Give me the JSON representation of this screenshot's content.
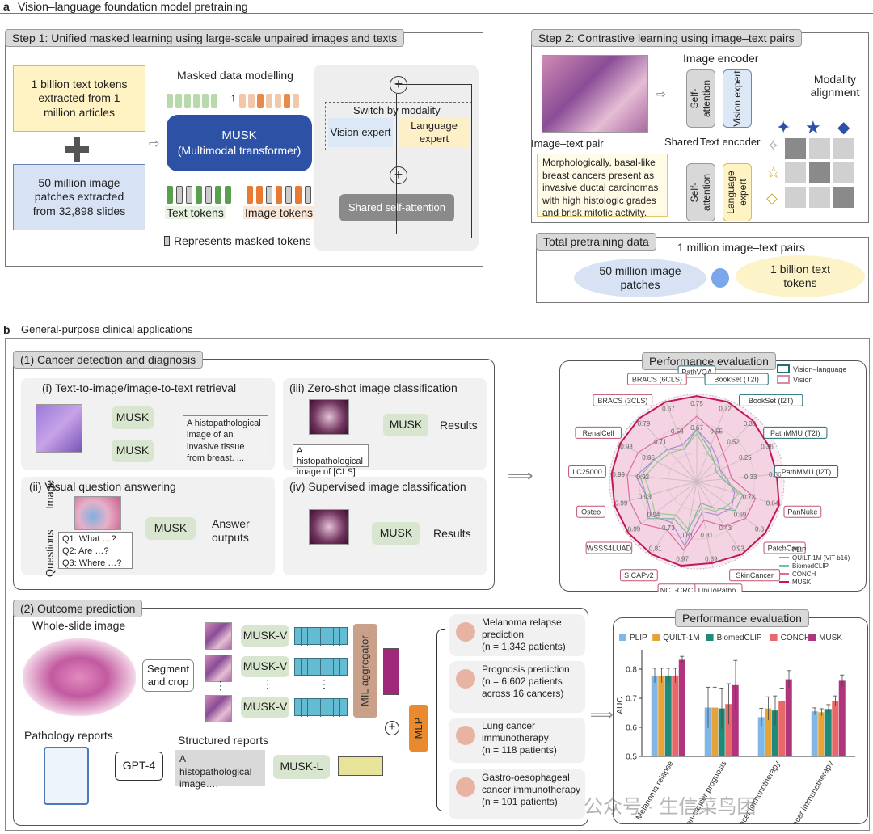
{
  "section_a": {
    "letter": "a",
    "title": "Vision–language foundation model pretraining",
    "step1": {
      "title": "Step 1: Unified masked learning using large-scale unpaired images and texts",
      "text_source": "1 billion text tokens extracted from 1 million articles",
      "image_source": "50 million image patches extracted from 32,898 slides",
      "masked_modelling": "Masked data modelling",
      "musk_name": "MUSK",
      "musk_desc": "(Multimodal transformer)",
      "text_tokens": "Text tokens",
      "image_tokens": "Image tokens",
      "masked_legend": "Represents masked tokens",
      "switch": "Switch by modality",
      "vision_expert": "Vision expert",
      "language_expert": "Language expert",
      "shared_attention": "Shared self-attention"
    },
    "step2": {
      "title": "Step 2: Contrastive learning using image–text pairs",
      "image_encoder": "Image encoder",
      "self_attention": "Self-attention",
      "vision_expert": "Vision expert",
      "language_expert": "Language expert",
      "modality_alignment": "Modality alignment",
      "pair_label": "Image–text pair",
      "shared": "Shared",
      "text_encoder": "Text encoder",
      "caption": "Morphologically, basal-like breast cancers present as invasive ductal carcinomas with high histologic grades and brisk mitotic activity."
    },
    "total": {
      "title": "Total pretraining data",
      "pairs": "1 million image–text pairs",
      "images": "50 million image patches",
      "tokens": "1 billion text tokens"
    }
  },
  "section_b": {
    "letter": "b",
    "title": "General-purpose clinical applications",
    "detection": {
      "title": "(1) Cancer detection and diagnosis",
      "retrieval_title": "(i) Text-to-image/image-to-text retrieval",
      "retrieval_text": "A histopathological image of an invasive tissue from breast. ...",
      "zeroshot_title": "(iii) Zero-shot image classification",
      "zeroshot_text": "A histopathological image of [CLS]",
      "vqa_title": "(ii) Visual question answering",
      "vqa_image": "Image",
      "vqa_questions": "Questions",
      "q1": "Q1: What …?",
      "q2": "Q2: Are …?",
      "q3": "Q3: Where …?",
      "answer": "Answer outputs",
      "supervised_title": "(iv) Supervised image classification",
      "musk": "MUSK",
      "results": "Results"
    },
    "radar": {
      "title": "Performance evaluation",
      "legend_type": [
        "Vision–language",
        "Vision"
      ],
      "legend_type_colors": [
        "#1f6f73",
        "#d98aa6"
      ],
      "models": [
        "PLIP",
        "QUILT-1M (ViT-b16)",
        "BiomedCLIP",
        "CONCH",
        "MUSK"
      ],
      "model_colors": [
        "#8fd98a",
        "#a78ee0",
        "#6cc3a5",
        "#e0679b",
        "#c2185b"
      ],
      "tasks": [
        "PathVQA",
        "BookSet (T2I)",
        "BookSet (I2T)",
        "PathMMU (T2I)",
        "PathMMU (I2T)",
        "PanNuke",
        "PatchCam",
        "SkinCancer",
        "UniToPatho",
        "NCT-CRC",
        "SICAPv2",
        "WSSS4LUAD",
        "Osteo",
        "LC25000",
        "RenalCell",
        "BRACS (3CLS)",
        "BRACS (6CLS)"
      ],
      "vl_tasks": [
        0,
        1,
        2,
        3,
        4
      ],
      "outer_values": [
        "0.75",
        "0.72",
        "0.38",
        "0.36",
        "0.36",
        "0.84",
        "0.8",
        "0.93",
        "0.39",
        "0.97",
        "0.81",
        "0.99",
        "0.99",
        "0.99",
        "0.93",
        "0.79",
        "0.67"
      ],
      "inner_values": [
        "0.67",
        "0.55",
        "0.52",
        "0.25",
        "0.33",
        "0.72",
        "0.69",
        "0.43",
        "0.31",
        "0.81",
        "0.73",
        "0.94",
        "0.93",
        "0.92",
        "0.86",
        "0.71",
        "0.58"
      ]
    },
    "outcome": {
      "title": "(2) Outcome prediction",
      "wsi": "Whole-slide image",
      "segment": "Segment and crop",
      "musk_v": "MUSK-V",
      "aggregator": "MIL aggregator",
      "mlp": "MLP",
      "reports": "Pathology reports",
      "gpt": "GPT-4",
      "structured": "Structured reports",
      "structured_text": "A histopathological image….",
      "musk_l": "MUSK-L",
      "tasks": [
        {
          "title": "Melanoma relapse prediction",
          "detail": "(n = 1,342 patients)"
        },
        {
          "title": "Prognosis prediction",
          "detail": "(n = 6,602 patients across 16 cancers)"
        },
        {
          "title": "Lung cancer immunotherapy",
          "detail": "(n = 118 patients)"
        },
        {
          "title": "Gastro-oesophageal cancer immunotherapy",
          "detail": "(n = 101 patients)"
        }
      ]
    }
  },
  "watermark": "公众号 · 生信菜鸟团",
  "chart_data": {
    "type": "bar",
    "title": "Performance evaluation",
    "categories": [
      "Melanoma relapse",
      "Pan-cancer prognosis",
      "Lung cancer immunotherapy",
      "Gastric cancer immunotherapy"
    ],
    "series": [
      {
        "name": "PLIP",
        "color": "#7fb8e6",
        "values": [
          0.778,
          0.668,
          0.635,
          0.655
        ]
      },
      {
        "name": "QUILT-1M",
        "color": "#e8a23a",
        "values": [
          0.778,
          0.668,
          0.665,
          0.652
        ]
      },
      {
        "name": "BiomedCLIP",
        "color": "#1f8a78",
        "values": [
          0.778,
          0.665,
          0.658,
          0.663
        ]
      },
      {
        "name": "CONCH",
        "color": "#e8686a",
        "values": [
          0.778,
          0.68,
          0.69,
          0.69
        ]
      },
      {
        "name": "MUSK",
        "color": "#b0357d",
        "values": [
          0.832,
          0.745,
          0.765,
          0.76
        ]
      }
    ],
    "errors": [
      [
        0.025,
        0.07,
        0.03,
        0.012
      ],
      [
        0.025,
        0.07,
        0.04,
        0.012
      ],
      [
        0.025,
        0.07,
        0.05,
        0.015
      ],
      [
        0.025,
        0.07,
        0.045,
        0.018
      ],
      [
        0.012,
        0.085,
        0.03,
        0.02
      ]
    ],
    "ylabel": "AUC",
    "ylim": [
      0.5,
      0.85
    ],
    "yticks": [
      "0.5",
      "0.6",
      "0.7",
      "0.8"
    ]
  }
}
